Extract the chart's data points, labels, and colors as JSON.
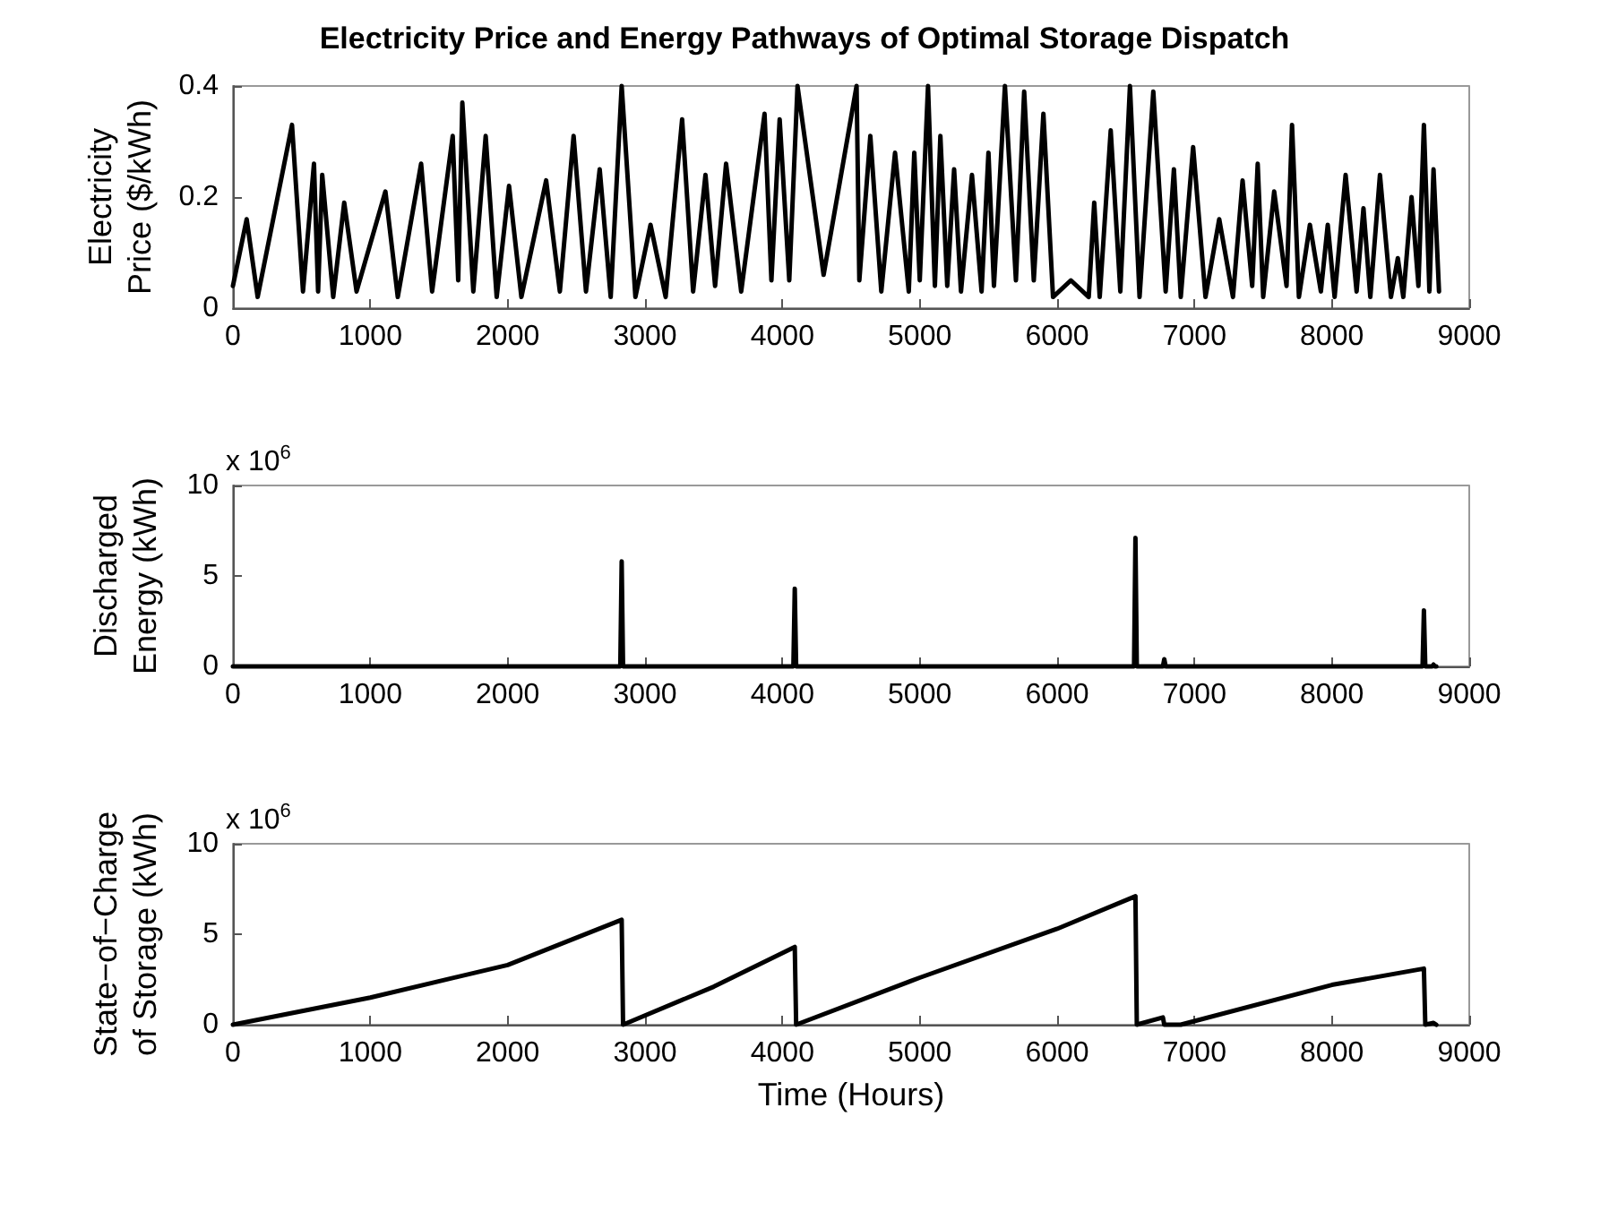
{
  "chart_data": [
    {
      "type": "line",
      "title": "Electricity Price and Energy Pathways of Optimal Storage Dispatch",
      "ylabel": "Electricity\nPrice ($/kWh)",
      "color": "#000000",
      "marker": "none",
      "line_style": "solid",
      "xlim": [
        0,
        9000
      ],
      "xticks": [
        0,
        1000,
        2000,
        3000,
        4000,
        5000,
        6000,
        7000,
        8000,
        9000
      ],
      "ylim": [
        0,
        0.4
      ],
      "yticks": [
        0,
        0.2,
        0.4
      ],
      "x": [
        0,
        100,
        180,
        430,
        510,
        590,
        620,
        650,
        730,
        810,
        900,
        1110,
        1200,
        1370,
        1450,
        1600,
        1640,
        1670,
        1750,
        1840,
        1920,
        2010,
        2100,
        2280,
        2380,
        2480,
        2570,
        2670,
        2750,
        2830,
        2930,
        3040,
        3150,
        3270,
        3350,
        3440,
        3510,
        3590,
        3700,
        3870,
        3920,
        3980,
        4050,
        4110,
        4300,
        4540,
        4560,
        4640,
        4720,
        4820,
        4920,
        4960,
        5000,
        5060,
        5110,
        5150,
        5200,
        5250,
        5300,
        5380,
        5450,
        5500,
        5540,
        5620,
        5700,
        5760,
        5830,
        5900,
        5970,
        6100,
        6230,
        6270,
        6310,
        6390,
        6460,
        6530,
        6600,
        6700,
        6790,
        6850,
        6900,
        6990,
        7080,
        7180,
        7280,
        7350,
        7420,
        7460,
        7500,
        7580,
        7670,
        7710,
        7760,
        7840,
        7920,
        7970,
        8020,
        8100,
        8180,
        8230,
        8280,
        8350,
        8430,
        8480,
        8520,
        8580,
        8630,
        8670,
        8710,
        8740,
        8780
      ],
      "values": [
        0.04,
        0.16,
        0.02,
        0.33,
        0.03,
        0.26,
        0.03,
        0.24,
        0.02,
        0.19,
        0.03,
        0.21,
        0.02,
        0.26,
        0.03,
        0.31,
        0.05,
        0.37,
        0.03,
        0.31,
        0.02,
        0.22,
        0.02,
        0.23,
        0.03,
        0.31,
        0.03,
        0.25,
        0.02,
        0.4,
        0.02,
        0.15,
        0.02,
        0.34,
        0.03,
        0.24,
        0.04,
        0.26,
        0.03,
        0.35,
        0.05,
        0.34,
        0.05,
        0.4,
        0.06,
        0.4,
        0.05,
        0.31,
        0.03,
        0.28,
        0.03,
        0.28,
        0.05,
        0.4,
        0.04,
        0.31,
        0.04,
        0.25,
        0.03,
        0.24,
        0.03,
        0.28,
        0.04,
        0.4,
        0.05,
        0.39,
        0.05,
        0.35,
        0.02,
        0.05,
        0.02,
        0.19,
        0.02,
        0.32,
        0.03,
        0.4,
        0.02,
        0.39,
        0.03,
        0.25,
        0.02,
        0.29,
        0.02,
        0.16,
        0.02,
        0.23,
        0.04,
        0.26,
        0.02,
        0.21,
        0.04,
        0.33,
        0.02,
        0.15,
        0.03,
        0.15,
        0.02,
        0.24,
        0.03,
        0.18,
        0.02,
        0.24,
        0.02,
        0.09,
        0.02,
        0.2,
        0.04,
        0.33,
        0.03,
        0.25,
        0.03
      ]
    },
    {
      "type": "line",
      "ylabel": "Discharged\nEnergy (kWh)",
      "annotations": [
        "x 10$^{6}$"
      ],
      "color": "#000000",
      "marker": "none",
      "line_style": "solid",
      "xlim": [
        0,
        9000
      ],
      "xticks": [
        0,
        1000,
        2000,
        3000,
        4000,
        5000,
        6000,
        7000,
        8000,
        9000
      ],
      "ylim": [
        0,
        10
      ],
      "yticks": [
        0,
        5,
        10
      ],
      "x": [
        0,
        2820,
        2830,
        2840,
        4080,
        4090,
        4100,
        6560,
        6570,
        6580,
        6770,
        6780,
        6790,
        8660,
        8670,
        8680,
        8730,
        8740,
        8750,
        8760
      ],
      "values": [
        0,
        0,
        5.8,
        0,
        0,
        4.3,
        0,
        0,
        7.1,
        0,
        0,
        0.4,
        0,
        0,
        3.1,
        0,
        0,
        0.1,
        0,
        0
      ]
    },
    {
      "type": "line",
      "xlabel": "Time (Hours)",
      "ylabel": "State−of−Charge\nof Storage (kWh)",
      "annotations": [
        "x 10$^{6}$"
      ],
      "color": "#000000",
      "marker": "none",
      "line_style": "solid",
      "xlim": [
        0,
        9000
      ],
      "xticks": [
        0,
        1000,
        2000,
        3000,
        4000,
        5000,
        6000,
        7000,
        8000,
        9000
      ],
      "ylim": [
        0,
        10
      ],
      "yticks": [
        0,
        5,
        10
      ],
      "x": [
        0,
        1000,
        2000,
        2830,
        2840,
        3500,
        4090,
        4100,
        5000,
        6000,
        6570,
        6580,
        6770,
        6780,
        6900,
        8000,
        8670,
        8680,
        8740,
        8760
      ],
      "values": [
        0,
        1.5,
        3.3,
        5.8,
        0,
        2.1,
        4.3,
        0,
        2.6,
        5.3,
        7.1,
        0,
        0.4,
        0,
        0,
        2.2,
        3.1,
        0,
        0.1,
        0
      ]
    }
  ]
}
